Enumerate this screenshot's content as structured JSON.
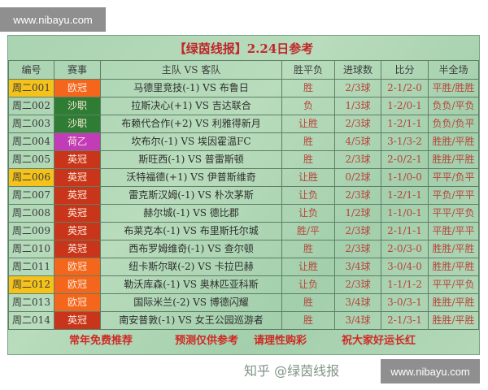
{
  "watermark_top": "www.nibayu.com",
  "watermark_bottom": "www.nibayu.com",
  "zhihu_watermark": "知乎 @绿茵线报",
  "title": "【绿茵线报】2.24日参考",
  "headers": [
    "编号",
    "赛事",
    "主队 VS 客队",
    "胜平负",
    "进球数",
    "比分",
    "半全场"
  ],
  "colors": {
    "highlight": "#f5c21b",
    "欧冠": "#f4661c",
    "沙职": "#2f7d34",
    "荷乙": "#c23cb8",
    "英冠": "#c9351a",
    "result_text": "#b8433a",
    "title": "#c0262a"
  },
  "rows": [
    {
      "code": "周二001",
      "highlight": true,
      "league": "欧冠",
      "match": "马德里竞技(-1) VS 布鲁日",
      "wdl": "胜",
      "goals": "2/3球",
      "score": "2-1/2-0",
      "htft": "平胜/胜胜"
    },
    {
      "code": "周二002",
      "highlight": false,
      "league": "沙职",
      "match": "拉斯决心(+1) VS 吉达联合",
      "wdl": "负",
      "goals": "1/3球",
      "score": "1-2/0-1",
      "htft": "负负/平负"
    },
    {
      "code": "周二003",
      "highlight": false,
      "league": "沙职",
      "match": "布赖代合作(+2) VS 利雅得新月",
      "wdl": "让胜",
      "goals": "2/3球",
      "score": "1-2/1-1",
      "htft": "负负/负平"
    },
    {
      "code": "周二004",
      "highlight": false,
      "league": "荷乙",
      "match": "坎布尔(-1) VS 埃因霍温FC",
      "wdl": "胜",
      "goals": "4/5球",
      "score": "3-1/3-2",
      "htft": "胜胜/平胜"
    },
    {
      "code": "周二005",
      "highlight": false,
      "league": "英冠",
      "match": "斯旺西(-1) VS 普雷斯顿",
      "wdl": "胜",
      "goals": "2/3球",
      "score": "2-0/2-1",
      "htft": "胜胜/平胜"
    },
    {
      "code": "周二006",
      "highlight": true,
      "league": "英冠",
      "match": "沃特福德(+1) VS 伊普斯维奇",
      "wdl": "让胜",
      "goals": "0/2球",
      "score": "1-1/0-0",
      "htft": "平平/负平"
    },
    {
      "code": "周二007",
      "highlight": false,
      "league": "英冠",
      "match": "雷克斯汉姆(-1) VS 朴次茅斯",
      "wdl": "让负",
      "goals": "2/3球",
      "score": "1-2/1-1",
      "htft": "平负/平平"
    },
    {
      "code": "周二008",
      "highlight": false,
      "league": "英冠",
      "match": "赫尔城(-1) VS 德比郡",
      "wdl": "让负",
      "goals": "1/2球",
      "score": "1-1/0-1",
      "htft": "平平/平负"
    },
    {
      "code": "周二009",
      "highlight": false,
      "league": "英冠",
      "match": "布莱克本(-1) VS 布里斯托尔城",
      "wdl": "胜/平",
      "goals": "2/3球",
      "score": "2-1/1-1",
      "htft": "平胜/平平"
    },
    {
      "code": "周二010",
      "highlight": false,
      "league": "英冠",
      "match": "西布罗姆维奇(-1) VS 查尔顿",
      "wdl": "胜",
      "goals": "2/3球",
      "score": "2-0/3-0",
      "htft": "胜胜/平胜"
    },
    {
      "code": "周二011",
      "highlight": false,
      "league": "欧冠",
      "match": "纽卡斯尔联(-2) VS 卡拉巴赫",
      "wdl": "让胜",
      "goals": "3/4球",
      "score": "3-0/4-0",
      "htft": "胜胜/平胜"
    },
    {
      "code": "周二012",
      "highlight": true,
      "league": "欧冠",
      "match": "勒沃库森(-1) VS 奥林匹亚科斯",
      "wdl": "让负",
      "goals": "2/3球",
      "score": "1-1/1-2",
      "htft": "平平/平负"
    },
    {
      "code": "周二013",
      "highlight": false,
      "league": "欧冠",
      "match": "国际米兰(-2) VS 博德闪耀",
      "wdl": "胜",
      "goals": "3/4球",
      "score": "3-0/3-1",
      "htft": "胜胜/平胜"
    },
    {
      "code": "周二014",
      "highlight": false,
      "league": "英冠",
      "match": "南安普敦(-1) VS 女王公园巡游者",
      "wdl": "胜",
      "goals": "3/4球",
      "score": "2-1/3-1",
      "htft": "胜胜/平胜"
    }
  ],
  "footer": [
    "常年免费推荐",
    "预测仅供参考",
    "请理性购彩",
    "祝大家好运长红"
  ]
}
